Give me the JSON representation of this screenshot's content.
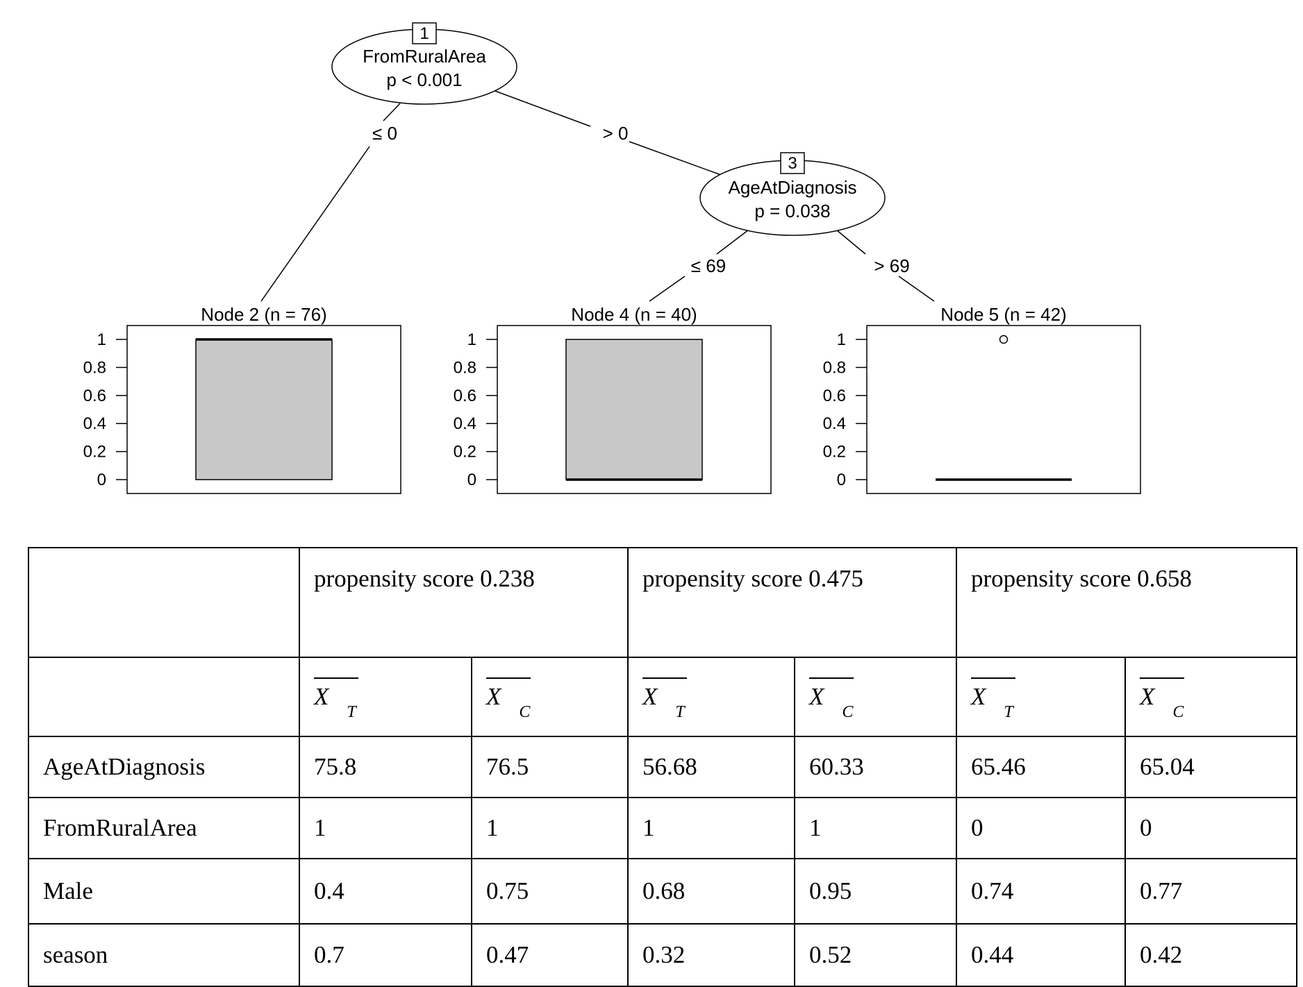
{
  "tree": {
    "nodes": [
      {
        "id": "1",
        "variable": "FromRuralArea",
        "pvalue": "p < 0.001"
      },
      {
        "id": "3",
        "variable": "AgeAtDiagnosis",
        "pvalue": "p = 0.038"
      }
    ],
    "edges": [
      {
        "label": "≤ 0"
      },
      {
        "label": "> 0"
      },
      {
        "label": "≤ 69"
      },
      {
        "label": "> 69"
      }
    ],
    "terminals": [
      {
        "title": "Node 2 (n = 76)",
        "box": {
          "q1": 0,
          "median": 1,
          "q3": 1
        },
        "outliers": []
      },
      {
        "title": "Node 4 (n = 40)",
        "box": {
          "q1": 0,
          "median": 0,
          "q3": 1
        },
        "outliers": []
      },
      {
        "title": "Node 5 (n = 42)",
        "box": {
          "q1": 0,
          "median": 0,
          "q3": 0
        },
        "outliers": [
          1
        ]
      }
    ],
    "y_ticks": [
      "1",
      "0.8",
      "0.6",
      "0.4",
      "0.2",
      "0"
    ],
    "box_fill": "#c8c8c8"
  },
  "table": {
    "groups": [
      "propensity score 0.238",
      "propensity score 0.475",
      "propensity score 0.658"
    ],
    "subheaders": [
      {
        "sym": "X",
        "sub": "T"
      },
      {
        "sym": "X",
        "sub": "C"
      },
      {
        "sym": "X",
        "sub": "T"
      },
      {
        "sym": "X",
        "sub": "C"
      },
      {
        "sym": "X",
        "sub": "T"
      },
      {
        "sym": "X",
        "sub": "C"
      }
    ],
    "rows": [
      {
        "label": "AgeAtDiagnosis",
        "values": [
          "75.8",
          "76.5",
          "56.68",
          "60.33",
          "65.46",
          "65.04"
        ]
      },
      {
        "label": "FromRuralArea",
        "values": [
          "1",
          "1",
          "1",
          "1",
          "0",
          "0"
        ]
      },
      {
        "label": "Male",
        "values": [
          "0.4",
          "0.75",
          "0.68",
          "0.95",
          "0.74",
          "0.77"
        ]
      },
      {
        "label": "season",
        "values": [
          "0.7",
          "0.47",
          "0.32",
          "0.52",
          "0.44",
          "0.42"
        ]
      }
    ]
  }
}
